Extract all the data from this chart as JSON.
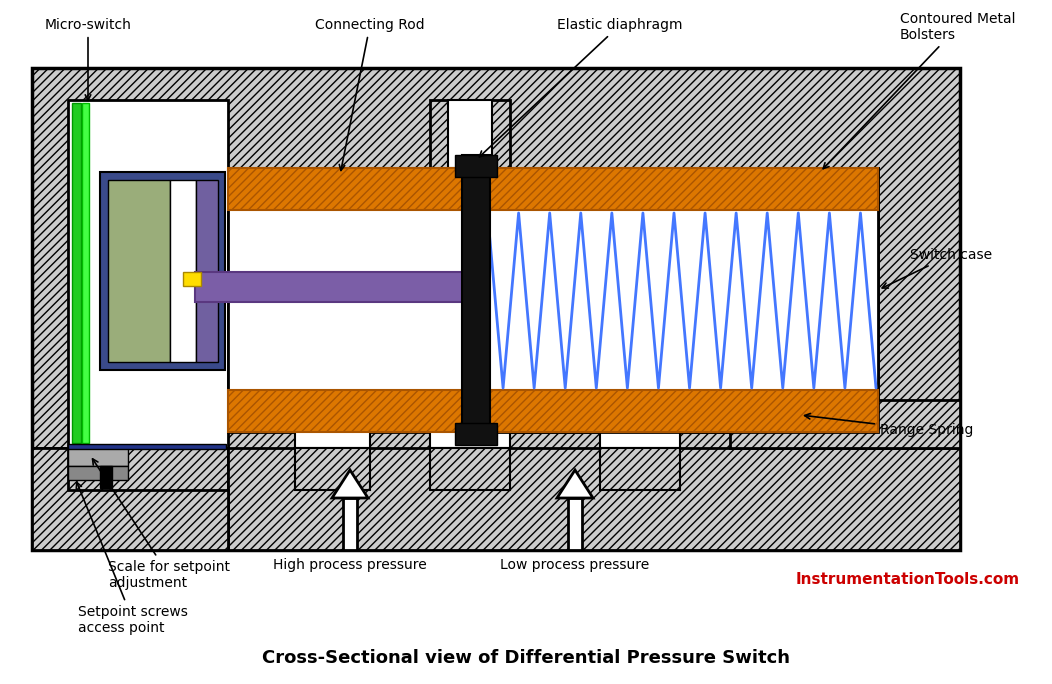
{
  "title": "Cross-Sectional view of Differential Pressure Switch",
  "watermark": "InstrumentationTools.com",
  "watermark_color": "#cc0000",
  "bg_color": "#ffffff",
  "labels": {
    "micro_switch": "Micro-switch",
    "connecting_rod": "Connecting Rod",
    "elastic_diaphragm": "Elastic diaphragm",
    "contoured_metal": "Contoured Metal\nBolsters",
    "switch_case": "Switch case",
    "range_spring": "Range Spring",
    "scale_setpoint": "Scale for setpoint\nadjustment",
    "setpoint_screws": "Setpoint screws\naccess point",
    "high_pressure": "High process pressure",
    "low_pressure": "Low process pressure"
  },
  "colors": {
    "hatch_bg": "#cccccc",
    "white": "#ffffff",
    "black": "#000000",
    "green1": "#22dd22",
    "green2": "#44ff44",
    "green_ms": "#9aad7a",
    "blue_ms": "#3a4a8a",
    "purple_ms": "#7060a0",
    "purple_rod": "#7b5ea7",
    "yellow": "#ffdd00",
    "gray": "#aaaaaa",
    "blue_spring": "#4477ff",
    "orange": "#dd7700",
    "diaphragm": "#111111",
    "navy": "#223388"
  },
  "fig_w": 10.52,
  "fig_h": 6.84,
  "dpi": 100
}
